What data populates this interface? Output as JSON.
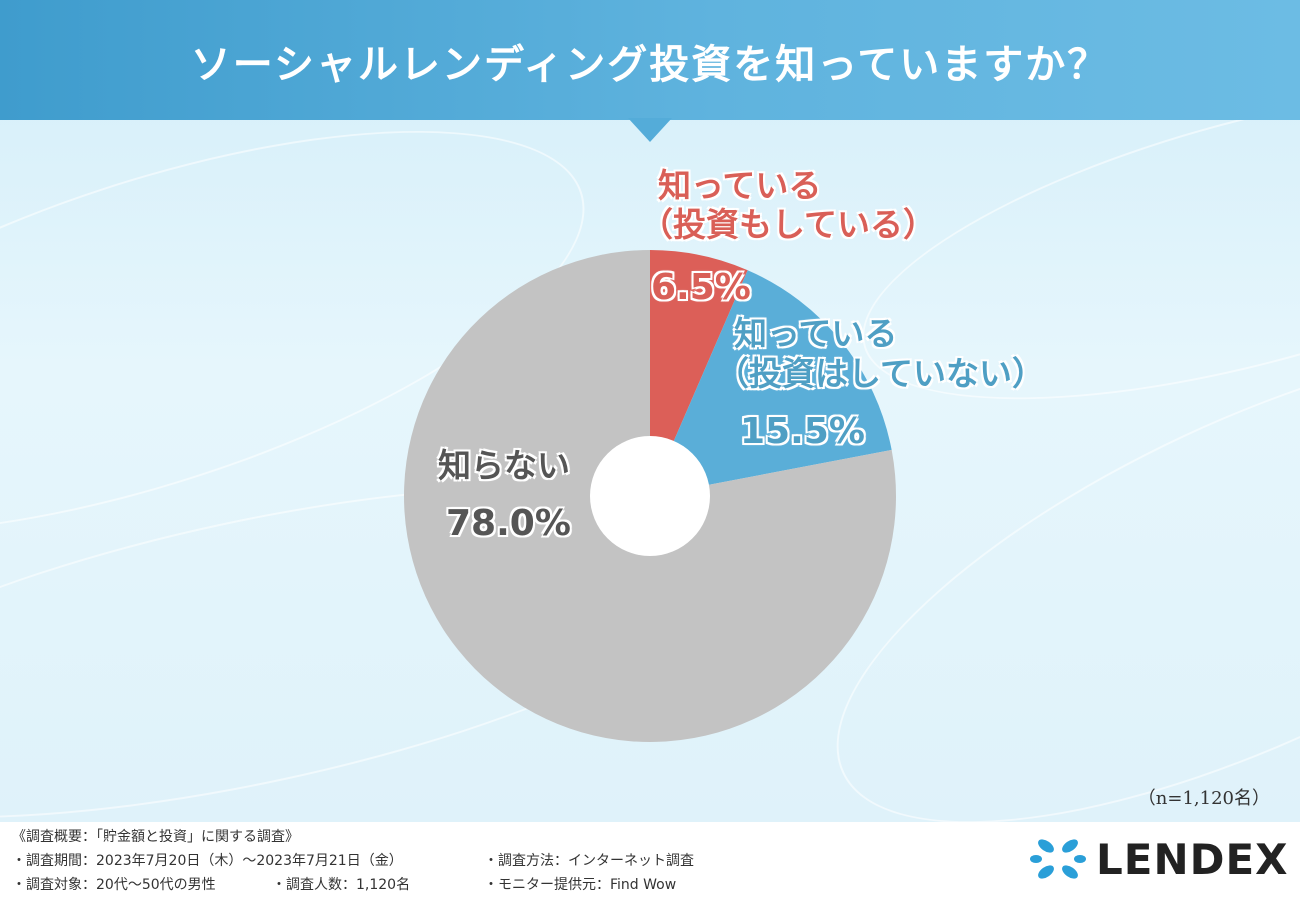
{
  "title": "ソーシャルレンディング投資を知っていますか？",
  "chart_data": {
    "type": "pie",
    "categories": [
      "知っている（投資もしている）",
      "知っている（投資はしていない）",
      "知らない"
    ],
    "values": [
      6.5,
      15.5,
      78.0
    ],
    "colors": [
      "#dc5f58",
      "#5aaed8",
      "#c3c3c3"
    ],
    "donut_hole": true
  },
  "labels": {
    "invested_line1": "知っている",
    "invested_line2": "（投資もしている）",
    "invested_pct": "6.5%",
    "not_invested_line1": "知っている",
    "not_invested_line2": "（投資はしていない）",
    "not_invested_pct": "15.5%",
    "unknown_line1": "知らない",
    "unknown_pct": "78.0%"
  },
  "sample_size": "（n=1,120名）",
  "footer": {
    "overview": "《調査概要：「貯金額と投資」に関する調査》",
    "period": "・調査期間：2023年7月20日（木）〜2023年7月21日（金）",
    "method": "・調査方法：インターネット調査",
    "target": "・調査対象：20代〜50代の男性",
    "count": "・調査人数：1,120名",
    "provider": "・モニター提供元：Find Wow"
  },
  "logo": {
    "text": "LENDEX"
  }
}
